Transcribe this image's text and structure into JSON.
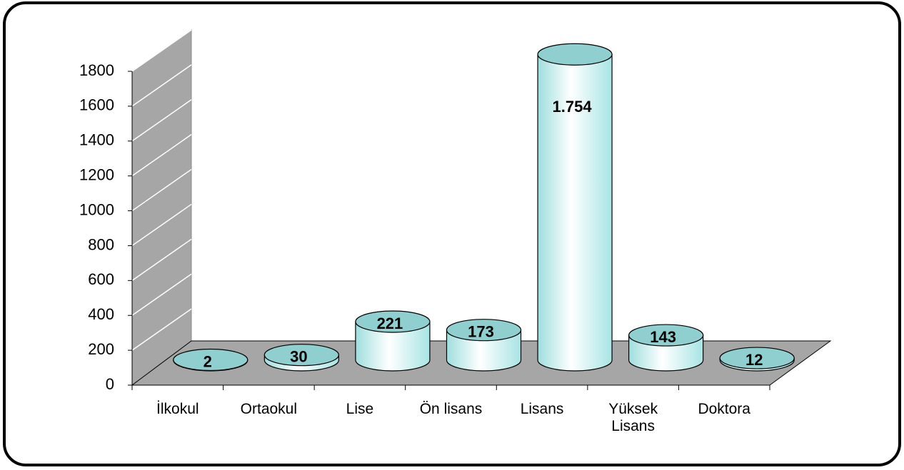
{
  "chart_data": {
    "type": "bar3d",
    "categories": [
      "İlkokul",
      "Ortaokul",
      "Lise",
      "Ön lisans",
      "Lisans",
      "Yüksek Lisans",
      "Doktora"
    ],
    "values": [
      2,
      30,
      221,
      173,
      1754,
      143,
      12
    ],
    "value_labels": [
      "2",
      "30",
      "221",
      "173",
      "1.754",
      "143",
      "12"
    ],
    "color": "#c8f4f4",
    "ylim": [
      0,
      1800
    ],
    "yticks": [
      0,
      200,
      400,
      600,
      800,
      1000,
      1200,
      1400,
      1600,
      1800
    ],
    "grid": true
  }
}
